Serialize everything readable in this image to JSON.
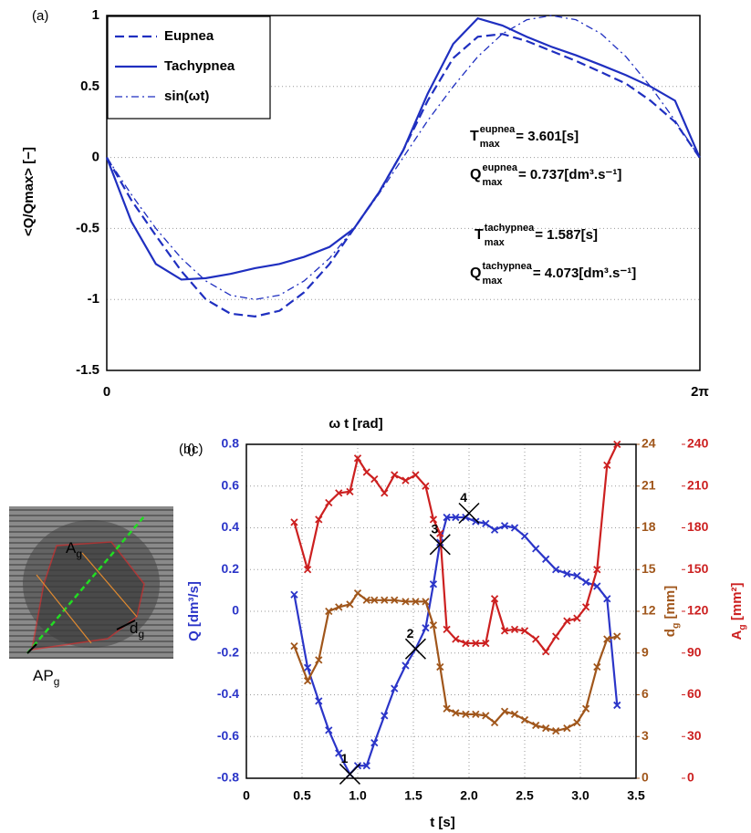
{
  "chart_data": [
    {
      "type": "line",
      "panel_label": "(a)",
      "xlabel": "ω t [rad]",
      "ylabel": "<Q/Qmax> [−]",
      "x": [
        0,
        0.26,
        0.52,
        0.79,
        1.05,
        1.31,
        1.57,
        1.83,
        2.09,
        2.36,
        2.62,
        2.88,
        3.14,
        3.4,
        3.67,
        3.93,
        4.19,
        4.45,
        4.71,
        4.97,
        5.24,
        5.5,
        5.76,
        6.02,
        6.28
      ],
      "series": [
        {
          "name": "Eupnea",
          "color": "#1f2fc0",
          "dash": "dashed",
          "values": [
            0,
            -0.3,
            -0.55,
            -0.8,
            -1.0,
            -1.1,
            -1.12,
            -1.08,
            -0.95,
            -0.75,
            -0.5,
            -0.25,
            0.05,
            0.4,
            0.7,
            0.85,
            0.87,
            0.82,
            0.75,
            0.68,
            0.6,
            0.52,
            0.4,
            0.25,
            0
          ]
        },
        {
          "name": "Tachypnea",
          "color": "#1f2fc0",
          "dash": "solid",
          "values": [
            0,
            -0.45,
            -0.75,
            -0.86,
            -0.85,
            -0.82,
            -0.78,
            -0.75,
            -0.7,
            -0.63,
            -0.5,
            -0.25,
            0.05,
            0.45,
            0.8,
            0.98,
            0.93,
            0.85,
            0.78,
            0.72,
            0.65,
            0.58,
            0.5,
            0.4,
            0
          ]
        },
        {
          "name": "sin(ωt)",
          "color": "#1f2fc0",
          "dash": "dashdot",
          "values": [
            0,
            -0.26,
            -0.5,
            -0.71,
            -0.87,
            -0.97,
            -1,
            -0.97,
            -0.87,
            -0.71,
            -0.5,
            -0.26,
            0,
            0.26,
            0.5,
            0.71,
            0.87,
            0.97,
            1,
            0.97,
            0.87,
            0.71,
            0.5,
            0.26,
            0
          ]
        }
      ],
      "xlim": [
        0,
        6.2832
      ],
      "xticks": [
        0,
        {
          "value": 6.2832,
          "label": "2π"
        }
      ],
      "ylim": [
        -1.5,
        1
      ],
      "yticks": [
        -1.5,
        -1,
        -0.5,
        0,
        0.5,
        1
      ],
      "grid": true,
      "legend": "upper left",
      "annotations": [
        {
          "main": "T",
          "sup": "eupnea",
          "sub": "max",
          "rest": "= 3.601[s]"
        },
        {
          "main": "Q",
          "sup": "eupnea",
          "sub": "max",
          "rest": "= 0.737[dm³.s⁻¹]"
        },
        {
          "main": "T",
          "sup": "tachypnea",
          "sub": "max",
          "rest": "= 1.587[s]"
        },
        {
          "main": "Q",
          "sup": "tachypnea",
          "sub": "max",
          "rest": "= 4.073[dm³.s⁻¹]"
        }
      ]
    },
    {
      "type": "line",
      "panel_label": "(c)",
      "xlabel": "t [s]",
      "ylabel": "Q [dm³/s]",
      "y2label": {
        "main": "d",
        "sub": "g",
        "rest": " [mm]"
      },
      "y3label": {
        "main": "A",
        "sub": "g",
        "rest": " [mm²]"
      },
      "x": [
        0.43,
        0.55,
        0.65,
        0.74,
        0.83,
        0.93,
        1.0,
        1.08,
        1.15,
        1.24,
        1.33,
        1.43,
        1.52,
        1.61,
        1.68,
        1.74,
        1.8,
        1.88,
        1.97,
        2.06,
        2.15,
        2.23,
        2.32,
        2.41,
        2.5,
        2.6,
        2.69,
        2.78,
        2.88,
        2.97,
        3.05,
        3.15,
        3.24,
        3.33
      ],
      "series": [
        {
          "axis": "y",
          "color": "#2b35c8",
          "marker": "x",
          "values": [
            0.08,
            -0.27,
            -0.43,
            -0.57,
            -0.68,
            -0.78,
            -0.74,
            -0.74,
            -0.63,
            -0.5,
            -0.37,
            -0.26,
            -0.18,
            -0.08,
            0.13,
            0.33,
            0.45,
            0.45,
            0.45,
            0.43,
            0.42,
            0.39,
            0.41,
            0.4,
            0.36,
            0.3,
            0.25,
            0.2,
            0.18,
            0.17,
            0.14,
            0.12,
            0.06,
            -0.45
          ]
        },
        {
          "axis": "y2",
          "color": "#a0561b",
          "marker": "x",
          "values": [
            9.5,
            7,
            8.5,
            12,
            12.3,
            12.5,
            13.3,
            12.8,
            12.8,
            12.8,
            12.8,
            12.7,
            12.7,
            12.7,
            11,
            8,
            5,
            4.7,
            4.6,
            4.6,
            4.5,
            4,
            4.8,
            4.6,
            4.2,
            3.8,
            3.6,
            3.4,
            3.6,
            4,
            5,
            8,
            10,
            10.2
          ]
        },
        {
          "axis": "y3",
          "color": "#cc2020",
          "marker": "x",
          "values": [
            184,
            150,
            186,
            198,
            205,
            206,
            230,
            220,
            215,
            205,
            218,
            214,
            218,
            210,
            186,
            176,
            107,
            100,
            97,
            97,
            97,
            129,
            106,
            107,
            106,
            100,
            91,
            102,
            113,
            115,
            123,
            150,
            225,
            240
          ]
        }
      ],
      "xlim": [
        0,
        3.5
      ],
      "xticks": [
        0,
        0.5,
        {
          "value": 1,
          "label": "1.0"
        },
        1.5,
        {
          "value": 2,
          "label": "2.0"
        },
        2.5,
        {
          "value": 3,
          "label": "3.0"
        },
        3.5
      ],
      "ylim": [
        -0.8,
        0.8
      ],
      "yticks": [
        -0.8,
        -0.6,
        -0.4,
        -0.2,
        0,
        0.2,
        0.4,
        0.6,
        0.8
      ],
      "y2lim": [
        0,
        24
      ],
      "y2ticks": [
        0,
        3,
        6,
        9,
        12,
        15,
        18,
        21,
        24
      ],
      "y3lim": [
        0,
        240
      ],
      "y3ticks": [
        0,
        30,
        60,
        90,
        120,
        150,
        180,
        210,
        240
      ],
      "grid": true,
      "points": [
        {
          "label": "1",
          "x": 0.93,
          "y": -0.78
        },
        {
          "label": "2",
          "x": 1.52,
          "y": -0.18
        },
        {
          "label": "3",
          "x": 1.74,
          "y": 0.32
        },
        {
          "label": "4",
          "x": 2.0,
          "y": 0.47
        }
      ]
    }
  ],
  "image_panel": {
    "panel_label": "(b)",
    "labels": [
      {
        "main": "A",
        "sub": "g"
      },
      {
        "main": "d",
        "sub": "g"
      },
      {
        "main": "AP",
        "sub": "g"
      }
    ]
  }
}
